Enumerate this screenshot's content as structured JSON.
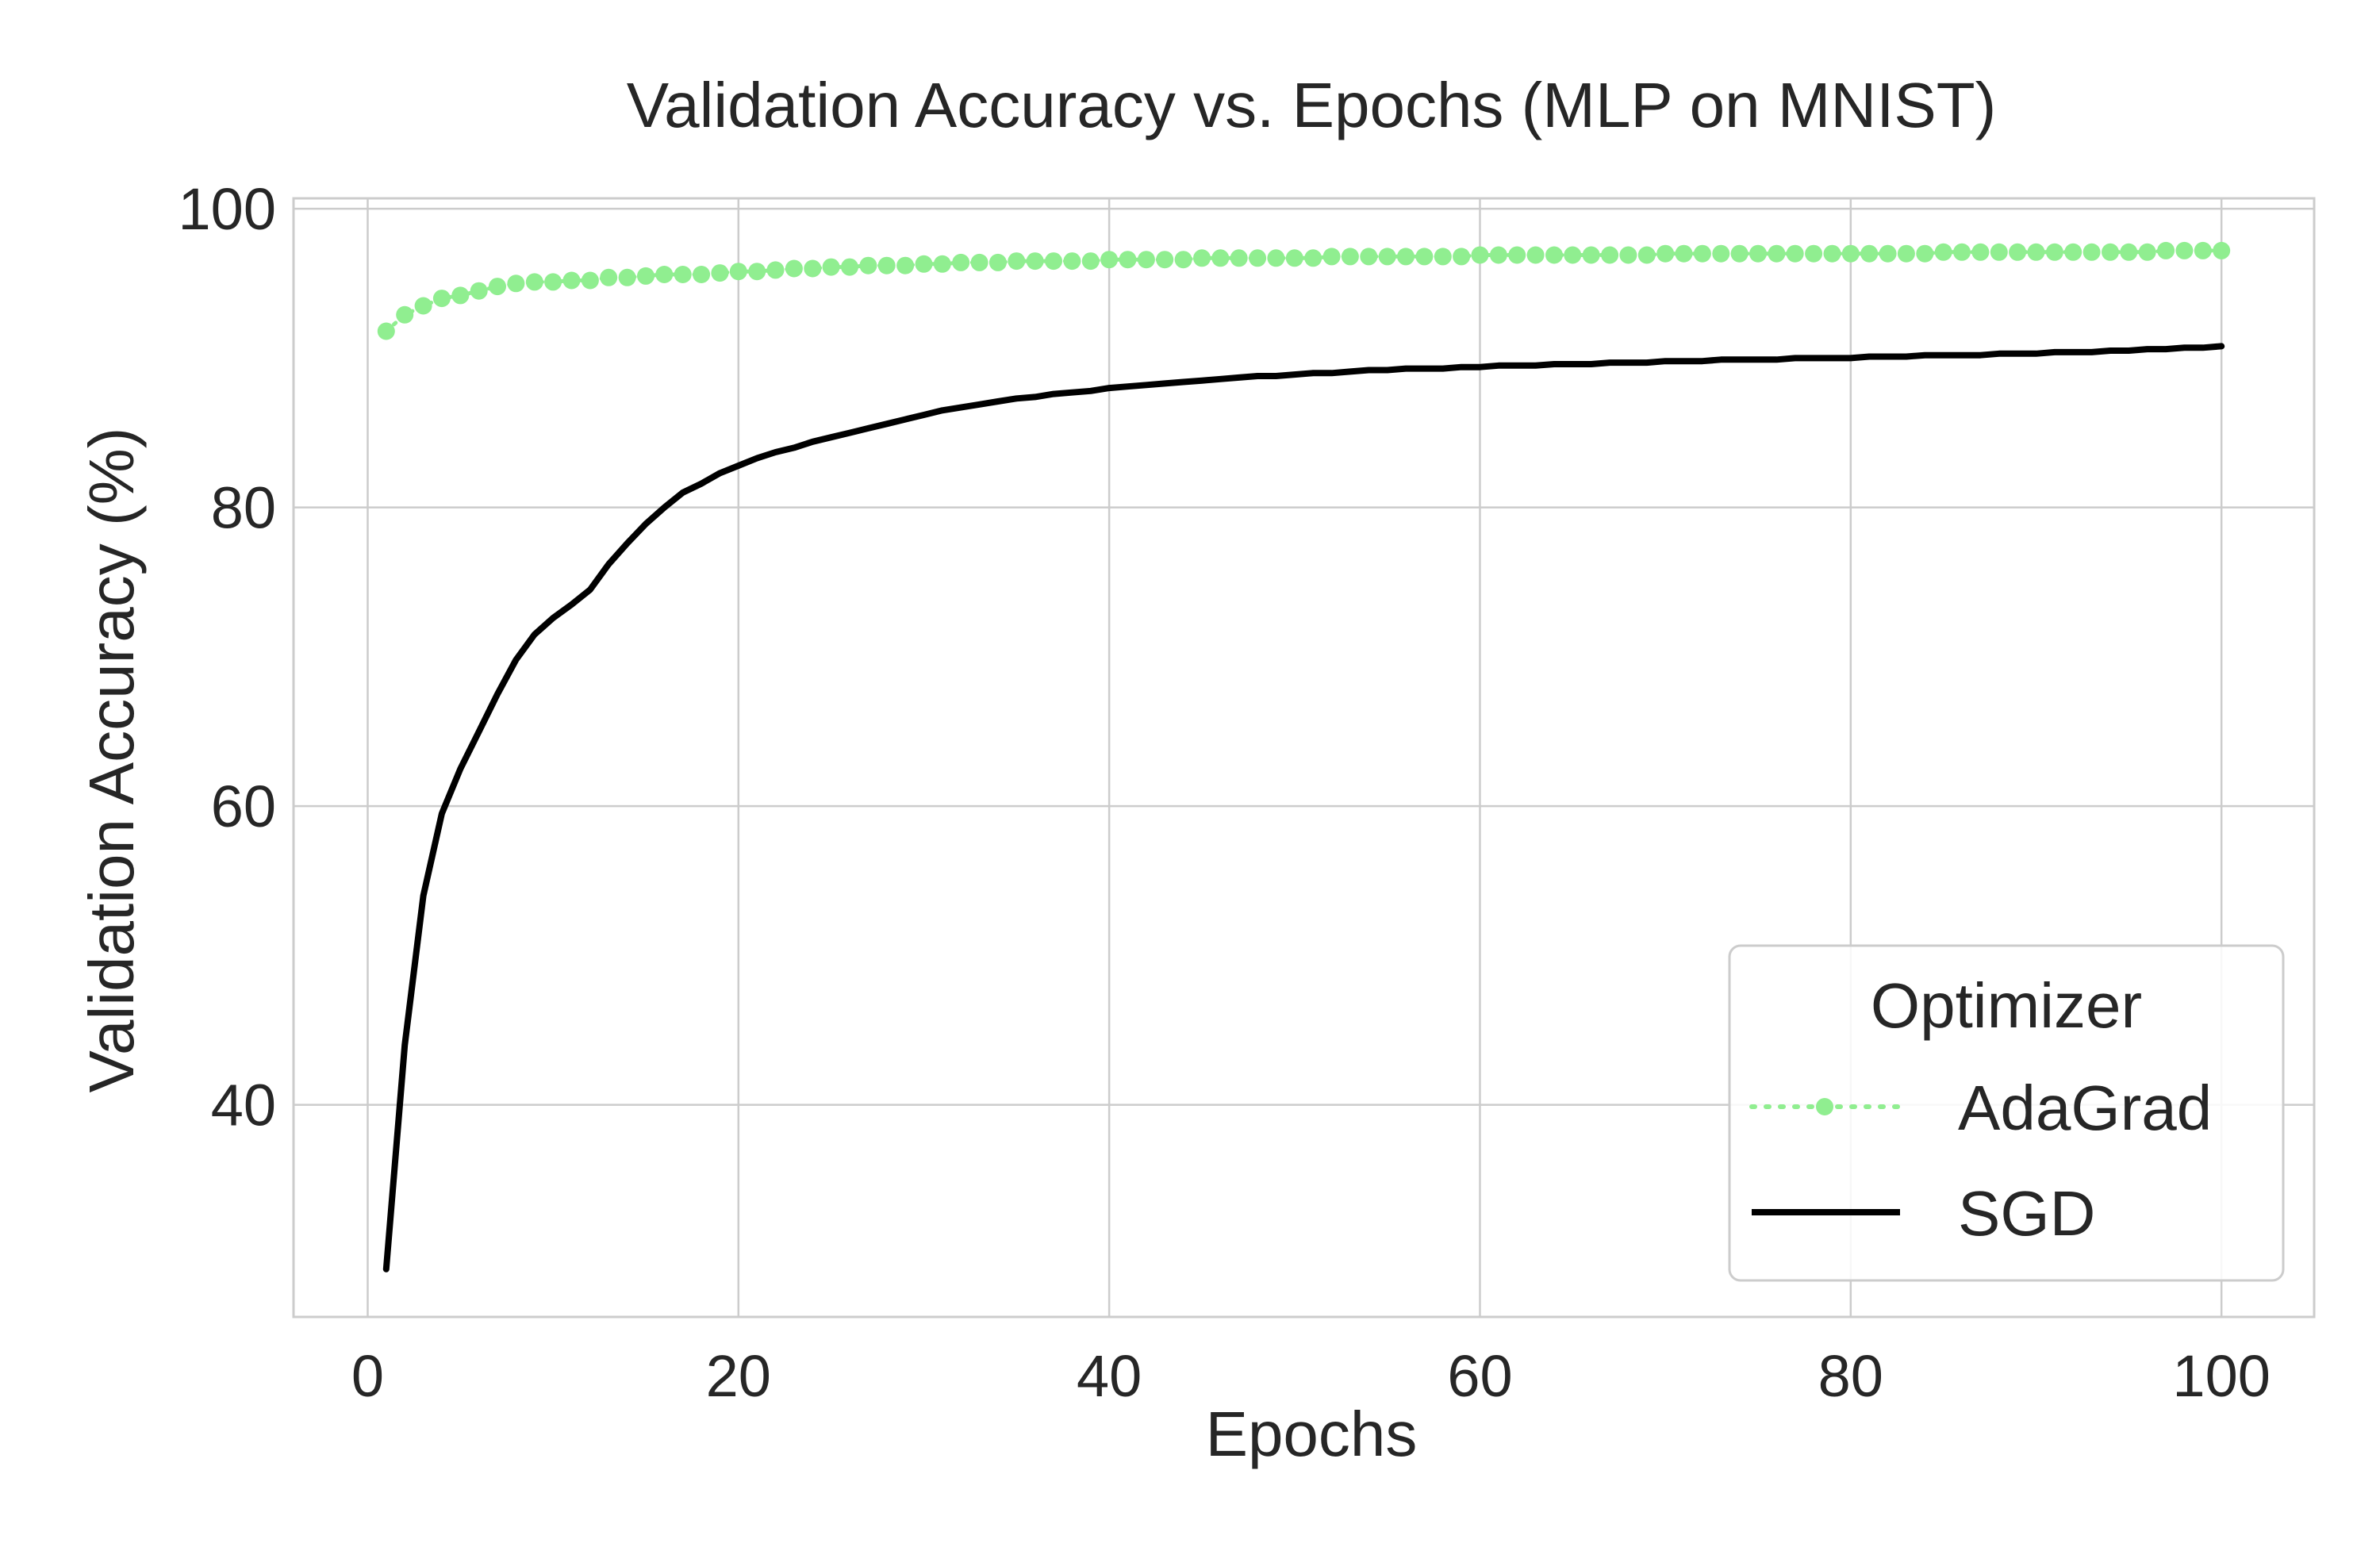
{
  "chart_data": {
    "type": "line",
    "title": "Validation Accuracy vs. Epochs (MLP on MNIST)",
    "xlabel": "Epochs",
    "ylabel": "Validation Accuracy (%)",
    "xlim": [
      -4,
      105
    ],
    "ylim": [
      25.8,
      100.7
    ],
    "x_ticks": [
      0,
      20,
      40,
      60,
      80,
      100
    ],
    "y_ticks": [
      40,
      60,
      80,
      100
    ],
    "grid": true,
    "legend": {
      "title": "Optimizer",
      "placement": "lower-right"
    },
    "x": [
      1,
      2,
      3,
      4,
      5,
      6,
      7,
      8,
      9,
      10,
      11,
      12,
      13,
      14,
      15,
      16,
      17,
      18,
      19,
      20,
      21,
      22,
      23,
      24,
      25,
      26,
      27,
      28,
      29,
      30,
      31,
      32,
      33,
      34,
      35,
      36,
      37,
      38,
      39,
      40,
      41,
      42,
      43,
      44,
      45,
      46,
      47,
      48,
      49,
      50,
      51,
      52,
      53,
      54,
      55,
      56,
      57,
      58,
      59,
      60,
      61,
      62,
      63,
      64,
      65,
      66,
      67,
      68,
      69,
      70,
      71,
      72,
      73,
      74,
      75,
      76,
      77,
      78,
      79,
      80,
      81,
      82,
      83,
      84,
      85,
      86,
      87,
      88,
      89,
      90,
      91,
      92,
      93,
      94,
      95,
      96,
      97,
      98,
      99,
      100
    ],
    "series": [
      {
        "name": "AdaGrad",
        "color": "#90ee90",
        "style": "dotted-markers",
        "values": [
          91.8,
          92.9,
          93.5,
          94.0,
          94.2,
          94.5,
          94.8,
          95.0,
          95.1,
          95.1,
          95.2,
          95.2,
          95.4,
          95.4,
          95.5,
          95.6,
          95.6,
          95.6,
          95.7,
          95.8,
          95.8,
          95.9,
          96.0,
          96.0,
          96.1,
          96.1,
          96.2,
          96.2,
          96.2,
          96.3,
          96.3,
          96.4,
          96.4,
          96.4,
          96.5,
          96.5,
          96.5,
          96.5,
          96.5,
          96.6,
          96.6,
          96.6,
          96.6,
          96.6,
          96.7,
          96.7,
          96.7,
          96.7,
          96.7,
          96.7,
          96.7,
          96.8,
          96.8,
          96.8,
          96.8,
          96.8,
          96.8,
          96.8,
          96.8,
          96.9,
          96.9,
          96.9,
          96.9,
          96.9,
          96.9,
          96.9,
          96.9,
          96.9,
          96.9,
          97.0,
          97.0,
          97.0,
          97.0,
          97.0,
          97.0,
          97.0,
          97.0,
          97.0,
          97.0,
          97.0,
          97.0,
          97.0,
          97.0,
          97.0,
          97.1,
          97.1,
          97.1,
          97.1,
          97.1,
          97.1,
          97.1,
          97.1,
          97.1,
          97.1,
          97.1,
          97.1,
          97.2,
          97.2,
          97.2,
          97.2
        ]
      },
      {
        "name": "SGD",
        "color": "#000000",
        "style": "solid",
        "values": [
          29.0,
          44.0,
          54.0,
          59.5,
          62.5,
          65.0,
          67.5,
          69.8,
          71.5,
          72.6,
          73.5,
          74.5,
          76.2,
          77.6,
          78.9,
          80.0,
          81.0,
          81.6,
          82.3,
          82.8,
          83.3,
          83.7,
          84.0,
          84.4,
          84.7,
          85.0,
          85.3,
          85.6,
          85.9,
          86.2,
          86.5,
          86.7,
          86.9,
          87.1,
          87.3,
          87.4,
          87.6,
          87.7,
          87.8,
          88.0,
          88.1,
          88.2,
          88.3,
          88.4,
          88.5,
          88.6,
          88.7,
          88.8,
          88.8,
          88.9,
          89.0,
          89.0,
          89.1,
          89.2,
          89.2,
          89.3,
          89.3,
          89.3,
          89.4,
          89.4,
          89.5,
          89.5,
          89.5,
          89.6,
          89.6,
          89.6,
          89.7,
          89.7,
          89.7,
          89.8,
          89.8,
          89.8,
          89.9,
          89.9,
          89.9,
          89.9,
          90.0,
          90.0,
          90.0,
          90.0,
          90.1,
          90.1,
          90.1,
          90.2,
          90.2,
          90.2,
          90.2,
          90.3,
          90.3,
          90.3,
          90.4,
          90.4,
          90.4,
          90.5,
          90.5,
          90.6,
          90.6,
          90.7,
          90.7,
          90.8
        ]
      }
    ]
  }
}
